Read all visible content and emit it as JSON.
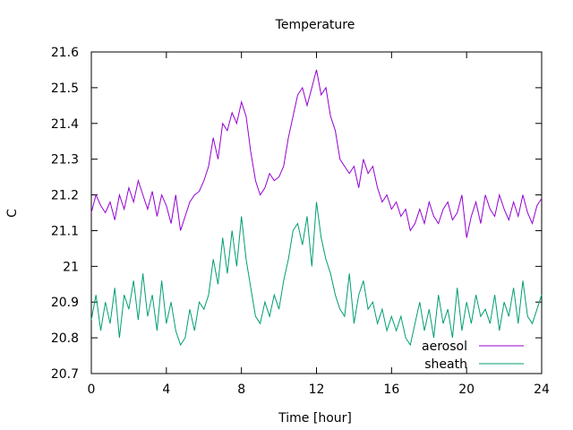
{
  "chart_data": {
    "type": "line",
    "title": "Temperature",
    "xlabel": "Time [hour]",
    "ylabel": "C",
    "xlim": [
      0,
      24
    ],
    "ylim": [
      20.7,
      21.6
    ],
    "xticks": [
      0,
      4,
      8,
      12,
      16,
      20,
      24
    ],
    "xtick_labels": [
      "0",
      "4",
      "8",
      "12",
      "16",
      "20",
      "24"
    ],
    "yticks": [
      20.7,
      20.8,
      20.9,
      21.0,
      21.1,
      21.2,
      21.3,
      21.4,
      21.5,
      21.6
    ],
    "ytick_labels": [
      "20.7",
      "20.8",
      "20.9",
      "21",
      "21.1",
      "21.2",
      "21.3",
      "21.4",
      "21.5",
      "21.6"
    ],
    "grid": false,
    "legend_position": "bottom-right",
    "series": [
      {
        "name": "aerosol",
        "color": "#9400d3",
        "x": [
          0,
          0.25,
          0.5,
          0.75,
          1,
          1.25,
          1.5,
          1.75,
          2,
          2.25,
          2.5,
          2.75,
          3,
          3.25,
          3.5,
          3.75,
          4,
          4.25,
          4.5,
          4.75,
          5,
          5.25,
          5.5,
          5.75,
          6,
          6.25,
          6.5,
          6.75,
          7,
          7.25,
          7.5,
          7.75,
          8,
          8.25,
          8.5,
          8.75,
          9,
          9.25,
          9.5,
          9.75,
          10,
          10.25,
          10.5,
          10.75,
          11,
          11.25,
          11.5,
          11.75,
          12,
          12.25,
          12.5,
          12.75,
          13,
          13.25,
          13.5,
          13.75,
          14,
          14.25,
          14.5,
          14.75,
          15,
          15.25,
          15.5,
          15.75,
          16,
          16.25,
          16.5,
          16.75,
          17,
          17.25,
          17.5,
          17.75,
          18,
          18.25,
          18.5,
          18.75,
          19,
          19.25,
          19.5,
          19.75,
          20,
          20.25,
          20.5,
          20.75,
          21,
          21.25,
          21.5,
          21.75,
          22,
          22.25,
          22.5,
          22.75,
          23,
          23.25,
          23.5,
          23.75,
          24
        ],
        "values": [
          21.15,
          21.2,
          21.17,
          21.15,
          21.18,
          21.13,
          21.2,
          21.16,
          21.22,
          21.18,
          21.24,
          21.2,
          21.16,
          21.21,
          21.14,
          21.2,
          21.17,
          21.12,
          21.2,
          21.1,
          21.14,
          21.18,
          21.2,
          21.21,
          21.24,
          21.28,
          21.36,
          21.3,
          21.4,
          21.38,
          21.43,
          21.4,
          21.46,
          21.42,
          21.32,
          21.24,
          21.2,
          21.22,
          21.26,
          21.24,
          21.25,
          21.28,
          21.36,
          21.42,
          21.48,
          21.5,
          21.45,
          21.5,
          21.55,
          21.48,
          21.5,
          21.42,
          21.38,
          21.3,
          21.28,
          21.26,
          21.28,
          21.22,
          21.3,
          21.26,
          21.28,
          21.22,
          21.18,
          21.2,
          21.16,
          21.18,
          21.14,
          21.16,
          21.1,
          21.12,
          21.16,
          21.12,
          21.18,
          21.14,
          21.12,
          21.16,
          21.18,
          21.13,
          21.15,
          21.2,
          21.08,
          21.14,
          21.18,
          21.12,
          21.2,
          21.16,
          21.14,
          21.2,
          21.16,
          21.13,
          21.18,
          21.14,
          21.2,
          21.15,
          21.12,
          21.17,
          21.19
        ]
      },
      {
        "name": "sheath",
        "color": "#009e73",
        "x": [
          0,
          0.25,
          0.5,
          0.75,
          1,
          1.25,
          1.5,
          1.75,
          2,
          2.25,
          2.5,
          2.75,
          3,
          3.25,
          3.5,
          3.75,
          4,
          4.25,
          4.5,
          4.75,
          5,
          5.25,
          5.5,
          5.75,
          6,
          6.25,
          6.5,
          6.75,
          7,
          7.25,
          7.5,
          7.75,
          8,
          8.25,
          8.5,
          8.75,
          9,
          9.25,
          9.5,
          9.75,
          10,
          10.25,
          10.5,
          10.75,
          11,
          11.25,
          11.5,
          11.75,
          12,
          12.25,
          12.5,
          12.75,
          13,
          13.25,
          13.5,
          13.75,
          14,
          14.25,
          14.5,
          14.75,
          15,
          15.25,
          15.5,
          15.75,
          16,
          16.25,
          16.5,
          16.75,
          17,
          17.25,
          17.5,
          17.75,
          18,
          18.25,
          18.5,
          18.75,
          19,
          19.25,
          19.5,
          19.75,
          20,
          20.25,
          20.5,
          20.75,
          21,
          21.25,
          21.5,
          21.75,
          22,
          22.25,
          22.5,
          22.75,
          23,
          23.25,
          23.5,
          23.75,
          24
        ],
        "values": [
          20.85,
          20.92,
          20.82,
          20.9,
          20.84,
          20.94,
          20.8,
          20.92,
          20.88,
          20.96,
          20.85,
          20.98,
          20.86,
          20.92,
          20.82,
          20.96,
          20.84,
          20.9,
          20.82,
          20.78,
          20.8,
          20.88,
          20.82,
          20.9,
          20.88,
          20.92,
          21.02,
          20.95,
          21.08,
          20.98,
          21.1,
          21.0,
          21.14,
          21.02,
          20.94,
          20.86,
          20.84,
          20.9,
          20.86,
          20.92,
          20.88,
          20.96,
          21.02,
          21.1,
          21.12,
          21.06,
          21.14,
          21.0,
          21.18,
          21.08,
          21.02,
          20.98,
          20.92,
          20.88,
          20.86,
          20.98,
          20.84,
          20.92,
          20.96,
          20.88,
          20.9,
          20.84,
          20.88,
          20.82,
          20.86,
          20.82,
          20.86,
          20.8,
          20.78,
          20.84,
          20.9,
          20.82,
          20.88,
          20.8,
          20.92,
          20.84,
          20.88,
          20.8,
          20.94,
          20.82,
          20.9,
          20.84,
          20.92,
          20.86,
          20.88,
          20.84,
          20.92,
          20.82,
          20.9,
          20.86,
          20.94,
          20.84,
          20.96,
          20.86,
          20.84,
          20.88,
          20.92
        ]
      }
    ]
  }
}
